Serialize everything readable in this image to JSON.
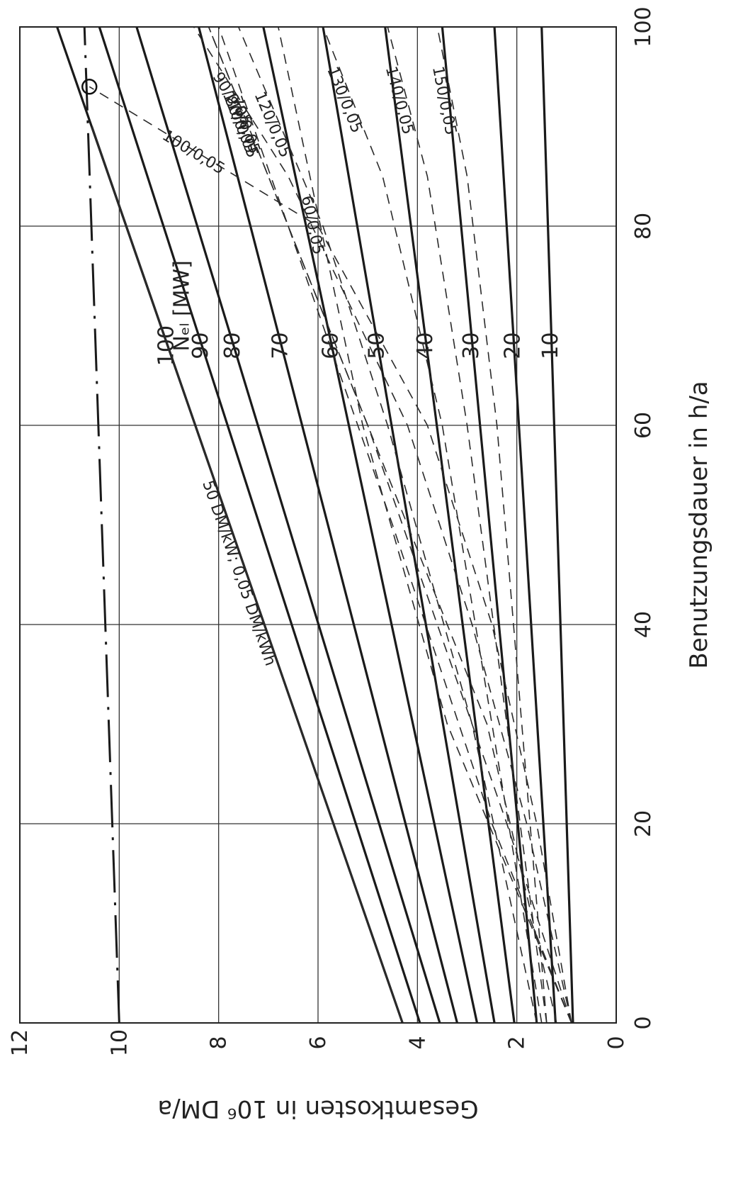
{
  "chart_data": {
    "type": "line",
    "orientation": "rotated-90-clockwise",
    "xlabel": "Benutzungsdauer in h/a",
    "ylabel": "Gesamtkosten in 10⁶ DM/a",
    "xlim": [
      0,
      100
    ],
    "ylim": [
      0,
      12
    ],
    "x_ticks": [
      0,
      20,
      40,
      60,
      80,
      100
    ],
    "y_ticks": [
      0,
      2,
      4,
      6,
      8,
      10,
      12
    ],
    "x_tick_labels": [
      "0",
      "20",
      "40",
      "60",
      "80",
      "100"
    ],
    "y_tick_labels": [
      "0",
      "2",
      "4",
      "6",
      "8",
      "10",
      "12"
    ],
    "grid": true,
    "group_label": "Nₑₗ [MW]",
    "series": [
      {
        "name": "10",
        "style": "solid",
        "x": [
          0,
          100
        ],
        "y": [
          0.87,
          1.5
        ]
      },
      {
        "name": "20",
        "style": "solid",
        "x": [
          0,
          100
        ],
        "y": [
          1.22,
          2.45
        ]
      },
      {
        "name": "30",
        "style": "solid",
        "x": [
          0,
          100
        ],
        "y": [
          1.6,
          3.5
        ]
      },
      {
        "name": "40",
        "style": "solid",
        "x": [
          0,
          100
        ],
        "y": [
          2.05,
          4.65
        ]
      },
      {
        "name": "50",
        "style": "solid",
        "x": [
          0,
          100
        ],
        "y": [
          2.45,
          5.9
        ]
      },
      {
        "name": "60",
        "style": "solid",
        "x": [
          0,
          100
        ],
        "y": [
          2.8,
          7.1
        ]
      },
      {
        "name": "70",
        "style": "solid",
        "x": [
          0,
          100
        ],
        "y": [
          3.2,
          8.4
        ]
      },
      {
        "name": "80",
        "style": "solid",
        "x": [
          0,
          100
        ],
        "y": [
          3.55,
          9.65
        ]
      },
      {
        "name": "90",
        "style": "solid",
        "x": [
          0,
          100
        ],
        "y": [
          3.95,
          10.4
        ]
      },
      {
        "name": "100",
        "style": "solid",
        "x": [
          0,
          100
        ],
        "y": [
          4.3,
          11.25
        ]
      },
      {
        "name": "",
        "style": "dashdot",
        "x": [
          0,
          100
        ],
        "y": [
          10.0,
          10.7
        ]
      }
    ],
    "scenario_curves": [
      {
        "label": "50 DM/kW; 0,05 DM/kWh",
        "x": [
          0,
          90
        ],
        "y": [
          4.3,
          10.55
        ]
      },
      {
        "label": "60/0,05",
        "x": [
          0,
          30,
          60,
          100
        ],
        "y": [
          0.9,
          3.4,
          5.1,
          6.8
        ]
      },
      {
        "label": "70/0,05",
        "x": [
          0,
          20,
          50,
          80,
          100
        ],
        "y": [
          0.9,
          2.5,
          4.5,
          6.6,
          8.0
        ]
      },
      {
        "label": "80/0,05",
        "x": [
          0,
          20,
          40,
          60,
          80,
          100
        ],
        "y": [
          0.9,
          2.2,
          3.6,
          5.0,
          6.6,
          8.2
        ]
      },
      {
        "label": "90/0,05",
        "x": [
          0,
          20,
          40,
          60,
          85,
          100
        ],
        "y": [
          0.9,
          1.8,
          2.9,
          4.2,
          6.6,
          8.5
        ]
      },
      {
        "label": "100/0,05",
        "x": [
          0,
          20,
          40,
          60,
          80,
          94
        ],
        "y": [
          0.9,
          1.6,
          2.5,
          3.8,
          6.0,
          10.6
        ]
      },
      {
        "label": "110/0,05",
        "x": [
          0,
          30,
          55,
          80,
          100
        ],
        "y": [
          1.2,
          2.6,
          4.6,
          6.6,
          8.2
        ]
      },
      {
        "label": "120/0,05",
        "x": [
          0,
          30,
          60,
          80,
          100
        ],
        "y": [
          1.6,
          2.9,
          4.6,
          5.9,
          7.6
        ]
      },
      {
        "label": "130/0,05",
        "x": [
          0,
          30,
          60,
          85,
          100
        ],
        "y": [
          1.5,
          2.5,
          3.5,
          4.7,
          5.9
        ]
      },
      {
        "label": "140/0,05",
        "x": [
          0,
          30,
          60,
          85,
          100
        ],
        "y": [
          1.4,
          2.2,
          3.0,
          3.8,
          4.6
        ]
      },
      {
        "label": "150/0,05",
        "x": [
          0,
          30,
          60,
          85,
          100
        ],
        "y": [
          1.4,
          1.9,
          2.4,
          3.0,
          3.6
        ]
      }
    ],
    "highlight_point": {
      "x": 94,
      "y": 10.6
    }
  }
}
